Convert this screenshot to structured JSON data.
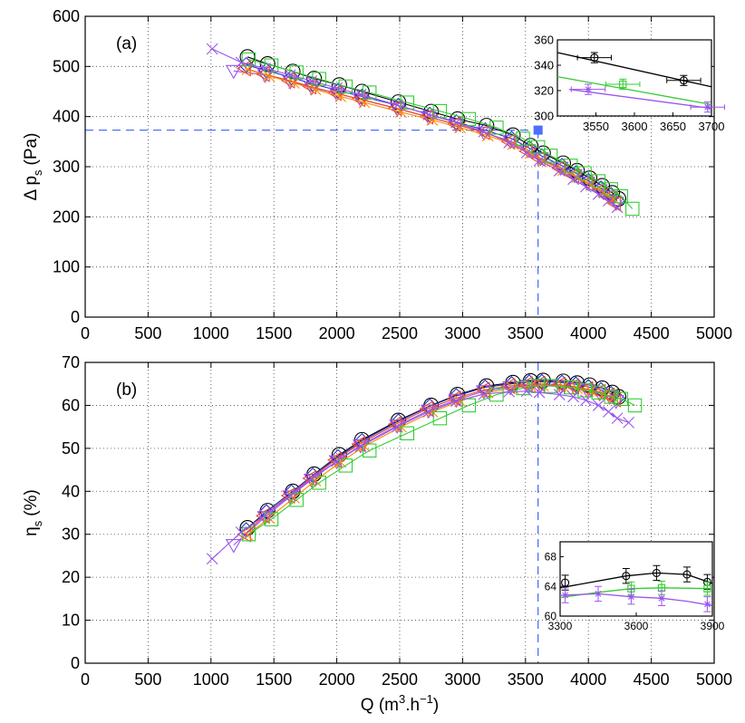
{
  "colors": {
    "black": "#000000",
    "blue": "#2233cc",
    "red": "#ee4422",
    "orange": "#ff8800",
    "green": "#33cc33",
    "purple": "#9955ee",
    "ref": "#4d6fff",
    "grid": "#444444"
  },
  "chart_data": [
    {
      "type": "line",
      "panel_label": "(a)",
      "ylabel": "Δ p",
      "ylabel_sub": "s",
      "ylabel_unit": "(Pa)",
      "xlim": [
        0,
        5000
      ],
      "ylim": [
        0,
        600
      ],
      "xticks": [
        0,
        500,
        1000,
        1500,
        2000,
        2500,
        3000,
        3500,
        4000,
        4500,
        5000
      ],
      "yticks": [
        0,
        100,
        200,
        300,
        400,
        500,
        600
      ],
      "reference": {
        "x": 3600,
        "y": 373,
        "marker": "filled-square"
      },
      "series": [
        {
          "name": "circles",
          "color": "black",
          "marker": "circle",
          "x": [
            1290,
            1450,
            1650,
            1820,
            2020,
            2200,
            2490,
            2750,
            2960,
            3190,
            3400,
            3540,
            3640,
            3800,
            3910,
            4010,
            4110,
            4190,
            4240
          ],
          "y": [
            519,
            505,
            490,
            476,
            463,
            450,
            429,
            410,
            395,
            382,
            363,
            342,
            327,
            307,
            292,
            277,
            262,
            248,
            236
          ]
        },
        {
          "name": "diamonds",
          "color": "blue",
          "marker": "diamond",
          "x": [
            1280,
            1440,
            1640,
            1810,
            2010,
            2200,
            2490,
            2740,
            2950,
            3180,
            3390,
            3530,
            3630,
            3790,
            3900,
            4000,
            4100,
            4180,
            4230
          ],
          "y": [
            503,
            492,
            478,
            465,
            452,
            440,
            422,
            404,
            389,
            373,
            356,
            337,
            321,
            302,
            287,
            272,
            257,
            244,
            232
          ]
        },
        {
          "name": "triangles-down",
          "color": "purple",
          "marker": "triangle-down",
          "x": [
            1180,
            1430,
            1630,
            1800,
            2000,
            2190,
            2480,
            2730,
            2950,
            3170,
            3380,
            3520,
            3620,
            3780,
            3890,
            3990,
            4090,
            4170,
            4220
          ],
          "y": [
            491,
            483,
            470,
            458,
            446,
            434,
            416,
            399,
            384,
            368,
            351,
            333,
            317,
            298,
            283,
            268,
            253,
            240,
            228
          ]
        },
        {
          "name": "triangles-left",
          "color": "red",
          "marker": "triangle-left",
          "x": [
            1270,
            1420,
            1620,
            1790,
            1990,
            2180,
            2470,
            2720,
            2940,
            3170,
            3370,
            3510,
            3610,
            3770,
            3880,
            3990,
            4090,
            4160,
            4210
          ],
          "y": [
            496,
            485,
            472,
            460,
            447,
            435,
            417,
            400,
            385,
            369,
            350,
            331,
            316,
            297,
            282,
            267,
            252,
            239,
            227
          ]
        },
        {
          "name": "crosses",
          "color": "orange",
          "marker": "x",
          "x": [
            1290,
            1460,
            1660,
            1830,
            2030,
            2220,
            2510,
            2760,
            2980,
            3200,
            3400,
            3540,
            3640,
            3800,
            3910,
            4020,
            4120,
            4200
          ],
          "y": [
            494,
            481,
            467,
            454,
            440,
            428,
            409,
            393,
            378,
            362,
            345,
            327,
            311,
            293,
            279,
            264,
            249,
            236
          ]
        },
        {
          "name": "squares",
          "color": "green",
          "marker": "square",
          "x": [
            1300,
            1480,
            1680,
            1860,
            2070,
            2260,
            2560,
            2820,
            3050,
            3270,
            3480,
            3600,
            3700,
            3860,
            3970,
            4080,
            4180,
            4260,
            4350
          ],
          "y": [
            514,
            502,
            488,
            475,
            460,
            448,
            428,
            411,
            395,
            378,
            356,
            339,
            322,
            302,
            287,
            271,
            255,
            241,
            216
          ]
        },
        {
          "name": "x-purple",
          "color": "purple",
          "marker": "x",
          "x": [
            1010,
            1240,
            1430,
            1630,
            1800,
            2000,
            2190,
            2480,
            2730,
            2950,
            3170,
            3370,
            3510,
            3610,
            3770,
            3880,
            3980,
            4080,
            4160,
            4230
          ],
          "y": [
            535,
            508,
            496,
            483,
            471,
            457,
            444,
            423,
            404,
            388,
            370,
            348,
            328,
            312,
            292,
            275,
            260,
            245,
            232,
            219
          ]
        }
      ],
      "inset": {
        "xlim": [
          3500,
          3700
        ],
        "ylim": [
          300,
          360
        ],
        "xticks": [
          3550,
          3600,
          3650,
          3700
        ],
        "yticks": [
          300,
          320,
          340,
          360
        ],
        "series": [
          {
            "color": "black",
            "marker": "circle",
            "x": [
              3548,
              3664
            ],
            "y": [
              346,
              328
            ],
            "xerr": 22,
            "yerr": 4,
            "line": {
              "x": [
                3500,
                3700
              ],
              "y": [
                350,
                323
              ]
            }
          },
          {
            "color": "green",
            "marker": "square",
            "x": [
              3585
            ],
            "y": [
              325
            ],
            "xerr": 22,
            "yerr": 4,
            "line": {
              "x": [
                3500,
                3700
              ],
              "y": [
                331,
                309
              ]
            }
          },
          {
            "color": "purple",
            "marker": "star",
            "x": [
              3540,
              3695
            ],
            "y": [
              321,
              307
            ],
            "xerr": 22,
            "yerr": 4,
            "line": {
              "x": [
                3515,
                3700
              ],
              "y": [
                321,
                306
              ]
            }
          }
        ]
      }
    },
    {
      "type": "line",
      "panel_label": "(b)",
      "xlabel": "Q (m",
      "xlabel_sup1": "3",
      "xlabel_mid": ".h",
      "xlabel_sup2": "−1",
      "xlabel_end": ")",
      "ylabel": "η",
      "ylabel_sub": "s",
      "ylabel_unit": "(%)",
      "xlim": [
        0,
        5000
      ],
      "ylim": [
        0,
        70
      ],
      "xticks": [
        0,
        500,
        1000,
        1500,
        2000,
        2500,
        3000,
        3500,
        4000,
        4500,
        5000
      ],
      "yticks": [
        0,
        10,
        20,
        30,
        40,
        50,
        60,
        70
      ],
      "reference": {
        "x": 3600
      },
      "series": [
        {
          "name": "circles",
          "color": "black",
          "marker": "circle",
          "x": [
            1290,
            1450,
            1650,
            1820,
            2020,
            2200,
            2490,
            2750,
            2960,
            3190,
            3400,
            3540,
            3640,
            3800,
            3910,
            4010,
            4110,
            4190,
            4240
          ],
          "y": [
            31.5,
            35.5,
            40,
            44,
            48.5,
            52,
            56.5,
            60,
            62.5,
            64.5,
            65.3,
            65.7,
            65.8,
            65.6,
            65.2,
            64.7,
            64,
            63,
            62
          ]
        },
        {
          "name": "diamonds",
          "color": "blue",
          "marker": "diamond",
          "x": [
            1280,
            1440,
            1640,
            1810,
            2010,
            2200,
            2490,
            2740,
            2950,
            3180,
            3390,
            3530,
            3630,
            3790,
            3900,
            4000,
            4100,
            4180,
            4230
          ],
          "y": [
            31,
            35.2,
            39.8,
            43.7,
            48,
            51.7,
            56.3,
            59.8,
            62.2,
            64.2,
            65,
            65.4,
            65.5,
            65.3,
            64.9,
            64.3,
            63.6,
            62.7,
            61.7
          ]
        },
        {
          "name": "triangles-down",
          "color": "purple",
          "marker": "triangle-down",
          "x": [
            1180,
            1430,
            1630,
            1800,
            2000,
            2190,
            2480,
            2730,
            2950,
            3170,
            3380,
            3520,
            3620,
            3780,
            3890,
            3990,
            4090,
            4170,
            4220
          ],
          "y": [
            27.5,
            34,
            38.8,
            42.7,
            47,
            50.7,
            55.3,
            58.8,
            61.3,
            63.3,
            64.2,
            64.6,
            64.7,
            64.5,
            64.1,
            63.5,
            62.8,
            62,
            61
          ]
        },
        {
          "name": "triangles-left",
          "color": "red",
          "marker": "triangle-left",
          "x": [
            1270,
            1420,
            1620,
            1790,
            1990,
            2180,
            2470,
            2720,
            2940,
            3170,
            3370,
            3510,
            3610,
            3770,
            3880,
            3990,
            4090,
            4160,
            4210
          ],
          "y": [
            30,
            34.3,
            39,
            43,
            47.3,
            51,
            55.6,
            59.2,
            61.6,
            63.6,
            64.5,
            64.9,
            65,
            64.8,
            64.4,
            63.8,
            63.1,
            62.3,
            61.4
          ]
        },
        {
          "name": "crosses",
          "color": "orange",
          "marker": "x",
          "x": [
            1290,
            1460,
            1660,
            1830,
            2030,
            2220,
            2510,
            2760,
            2980,
            3200,
            3400,
            3540,
            3640,
            3800,
            3910,
            4020,
            4120,
            4200
          ],
          "y": [
            29.8,
            33.8,
            38.5,
            42.5,
            46.8,
            50.5,
            55,
            58.5,
            61,
            63,
            64,
            64.5,
            64.6,
            64.4,
            64,
            63.4,
            62.6,
            61.8
          ]
        },
        {
          "name": "squares",
          "color": "green",
          "marker": "square",
          "x": [
            1300,
            1480,
            1680,
            1860,
            2070,
            2260,
            2560,
            2820,
            3050,
            3270,
            3480,
            3600,
            3700,
            3860,
            3970,
            4080,
            4180,
            4260,
            4370
          ],
          "y": [
            30,
            33.5,
            38,
            42,
            46,
            49.5,
            53.5,
            57,
            60,
            62.5,
            64,
            64.5,
            64.5,
            64.2,
            63.5,
            63,
            62,
            61.5,
            60
          ]
        },
        {
          "name": "x-purple",
          "color": "purple",
          "marker": "x",
          "x": [
            1010,
            1240,
            1430,
            1630,
            1800,
            2000,
            2190,
            2480,
            2730,
            2950,
            3170,
            3370,
            3510,
            3610,
            3770,
            3880,
            3980,
            4080,
            4160,
            4230,
            4320
          ],
          "y": [
            24.3,
            30.5,
            34.5,
            39,
            43,
            47,
            50.5,
            55,
            58.5,
            61,
            62.6,
            63.2,
            63.3,
            63,
            62.5,
            62,
            61.2,
            60,
            58.5,
            57,
            56
          ]
        }
      ],
      "inset": {
        "xlim": [
          3300,
          3900
        ],
        "ylim": [
          60,
          70
        ],
        "xticks": [
          3300,
          3600,
          3900
        ],
        "yticks": [
          60,
          64,
          68
        ],
        "series": [
          {
            "color": "black",
            "marker": "circle",
            "x": [
              3320,
              3560,
              3680,
              3800,
              3880
            ],
            "y": [
              64.5,
              65.4,
              65.8,
              65.6,
              64.6
            ],
            "xerr": 0,
            "yerr": 1.0,
            "line": {
              "x": [
                3300,
                3560,
                3680,
                3800,
                3900
              ],
              "y": [
                63.8,
                65.4,
                65.8,
                65.6,
                64.4
              ]
            }
          },
          {
            "color": "green",
            "marker": "square",
            "x": [
              3580,
              3700,
              3880
            ],
            "y": [
              63.7,
              63.8,
              63.7
            ],
            "xerr": 0,
            "yerr": 0.9,
            "line": {
              "x": [
                3300,
                3450,
                3580,
                3700,
                3900
              ],
              "y": [
                62.5,
                63.2,
                63.7,
                63.8,
                63.7
              ]
            }
          },
          {
            "color": "purple",
            "marker": "star",
            "x": [
              3320,
              3450,
              3580,
              3700,
              3880
            ],
            "y": [
              62.8,
              63.0,
              62.6,
              62.4,
              61.6
            ],
            "xerr": 0,
            "yerr": 1.0,
            "line": {
              "x": [
                3300,
                3450,
                3580,
                3700,
                3800,
                3900
              ],
              "y": [
                62.8,
                63.0,
                62.6,
                62.4,
                62.0,
                61.4
              ]
            }
          }
        ]
      }
    }
  ]
}
